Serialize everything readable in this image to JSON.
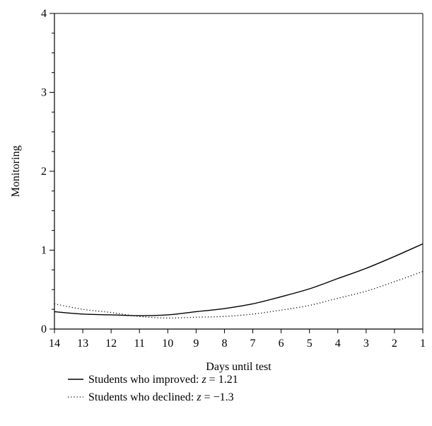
{
  "chart_data": {
    "type": "line",
    "xlabel": "Days until test",
    "ylabel": "Monitoring",
    "x": [
      14,
      13,
      12,
      11,
      10,
      9,
      8,
      7,
      6,
      5,
      4,
      3,
      2,
      1
    ],
    "x_ticks": [
      "14",
      "13",
      "12",
      "11",
      "10",
      "9",
      "8",
      "7",
      "6",
      "5",
      "4",
      "3",
      "2",
      "1"
    ],
    "y_ticks": [
      "0",
      "1",
      "2",
      "3",
      "4"
    ],
    "xlim": [
      14,
      1
    ],
    "ylim": [
      0,
      4
    ],
    "x_reversed": true,
    "grid": false,
    "legend_position": "bottom-left",
    "series": [
      {
        "name": "Students who improved: z = 1.21",
        "style": "solid",
        "color": "#000000",
        "values": [
          0.22,
          0.19,
          0.18,
          0.17,
          0.18,
          0.22,
          0.26,
          0.32,
          0.41,
          0.51,
          0.64,
          0.77,
          0.92,
          1.08
        ]
      },
      {
        "name": "Students who declined: z = −1.3",
        "style": "dotted",
        "color": "#000000",
        "values": [
          0.32,
          0.25,
          0.21,
          0.16,
          0.14,
          0.15,
          0.16,
          0.19,
          0.24,
          0.3,
          0.39,
          0.48,
          0.6,
          0.73
        ]
      }
    ],
    "legend": [
      {
        "prefix": "Students who improved: ",
        "var": "z",
        "rest": " = 1.21"
      },
      {
        "prefix": "Students who declined: ",
        "var": "z",
        "rest": " = −1.3"
      }
    ]
  }
}
